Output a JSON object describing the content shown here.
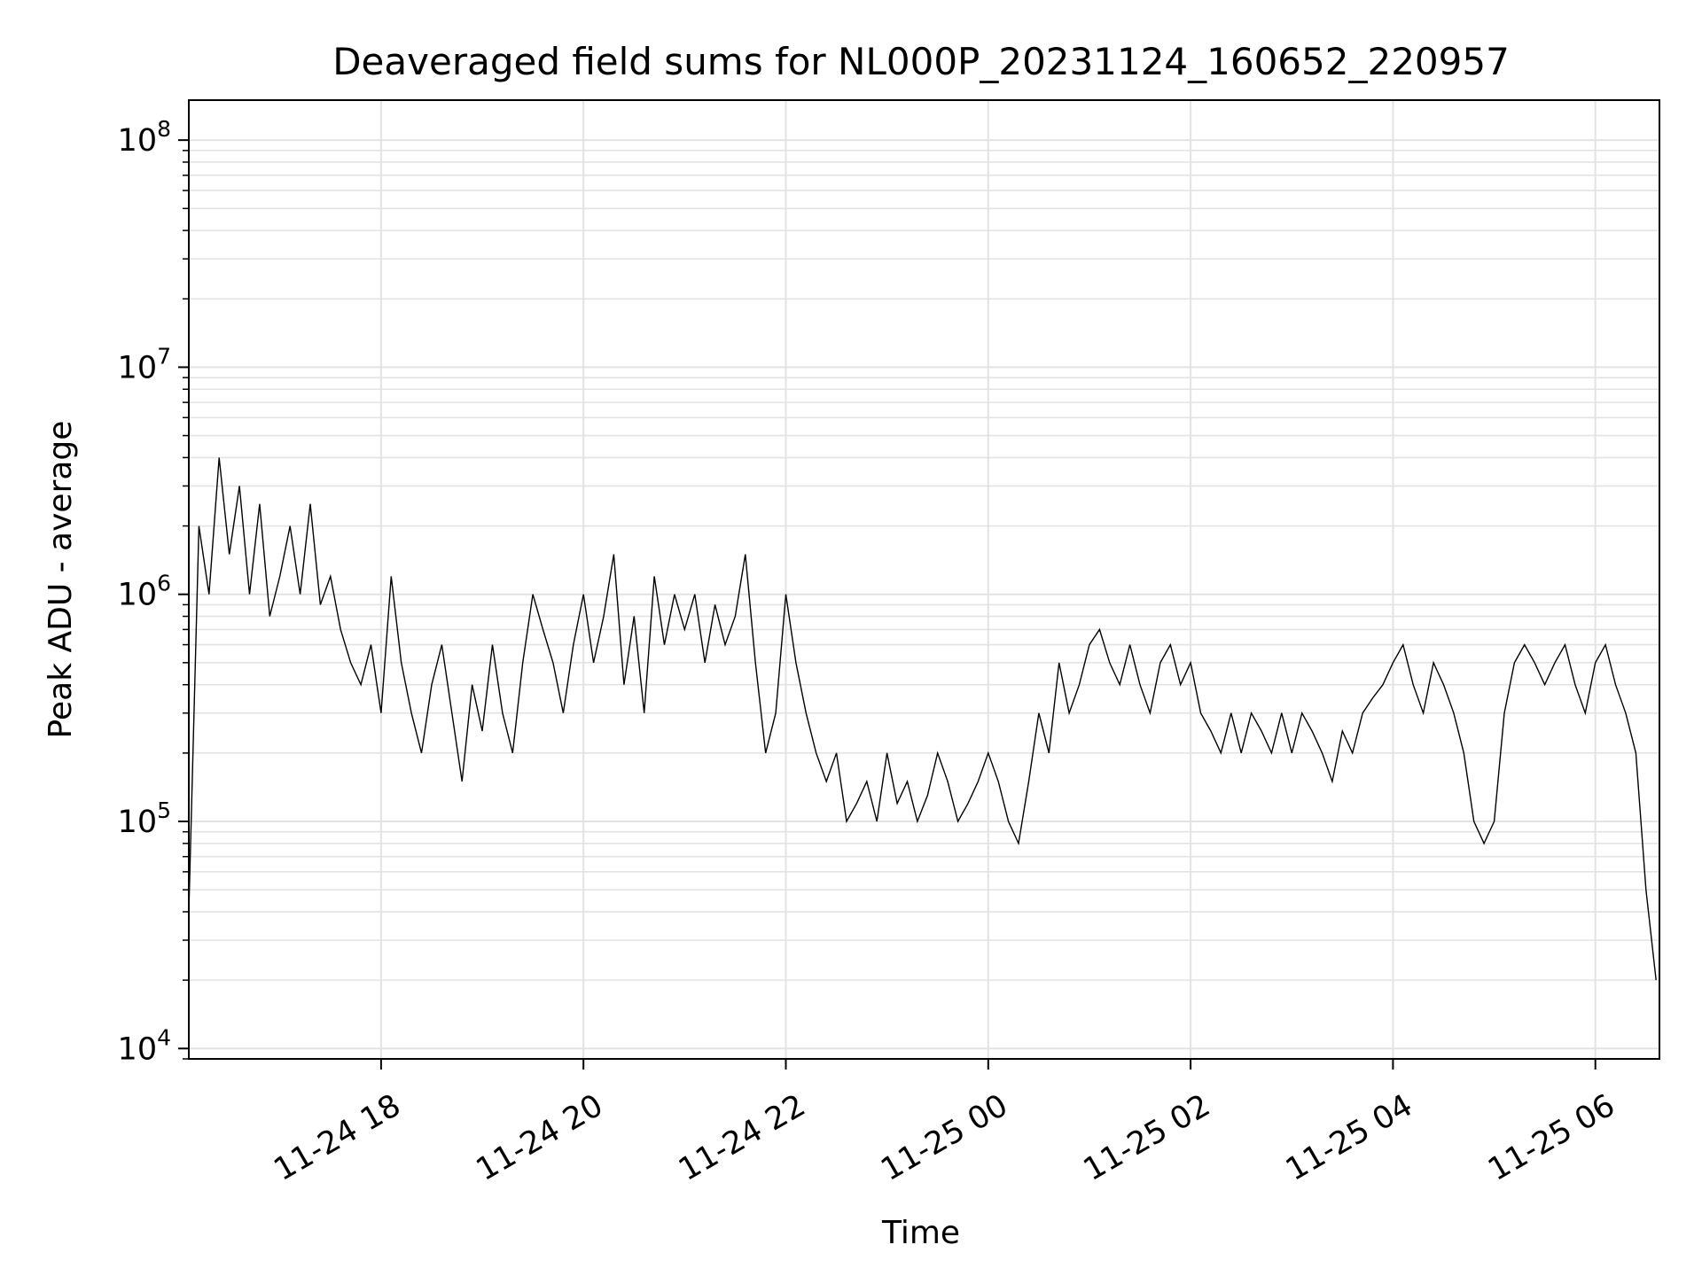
{
  "chart_data": {
    "type": "line",
    "title": "Deaveraged field sums for NL000P_20231124_160652_220957",
    "xlabel": "Time",
    "ylabel": "Peak ADU - average",
    "xlim": [
      "2023-11-24 16:06",
      "2023-11-25 06:38"
    ],
    "ylim": [
      9000,
      150000000
    ],
    "yscale": "log",
    "grid": true,
    "line_color": "#000000",
    "grid_color": "#e3e3e3",
    "x_ticks": [
      {
        "value": "2023-11-24 18:00",
        "label": "11-24 18"
      },
      {
        "value": "2023-11-24 20:00",
        "label": "11-24 20"
      },
      {
        "value": "2023-11-24 22:00",
        "label": "11-24 22"
      },
      {
        "value": "2023-11-25 00:00",
        "label": "11-25 00"
      },
      {
        "value": "2023-11-25 02:00",
        "label": "11-25 02"
      },
      {
        "value": "2023-11-25 04:00",
        "label": "11-25 04"
      },
      {
        "value": "2023-11-25 06:00",
        "label": "11-25 06"
      }
    ],
    "y_ticks": [
      {
        "value": 10000,
        "base": "10",
        "exp": "4"
      },
      {
        "value": 100000,
        "base": "10",
        "exp": "5"
      },
      {
        "value": 1000000,
        "base": "10",
        "exp": "6"
      },
      {
        "value": 10000000,
        "base": "10",
        "exp": "7"
      },
      {
        "value": 100000000,
        "base": "10",
        "exp": "8"
      }
    ],
    "series": [
      {
        "x": [
          "2023-11-24 16:06",
          "2023-11-24 16:12",
          "2023-11-24 16:18",
          "2023-11-24 16:24",
          "2023-11-24 16:30",
          "2023-11-24 16:36",
          "2023-11-24 16:42",
          "2023-11-24 16:48",
          "2023-11-24 16:54",
          "2023-11-24 17:00",
          "2023-11-24 17:06",
          "2023-11-24 17:12",
          "2023-11-24 17:18",
          "2023-11-24 17:24",
          "2023-11-24 17:30",
          "2023-11-24 17:36",
          "2023-11-24 17:42",
          "2023-11-24 17:48",
          "2023-11-24 17:54",
          "2023-11-24 18:00",
          "2023-11-24 18:06",
          "2023-11-24 18:12",
          "2023-11-24 18:18",
          "2023-11-24 18:24",
          "2023-11-24 18:30",
          "2023-11-24 18:36",
          "2023-11-24 18:42",
          "2023-11-24 18:48",
          "2023-11-24 18:54",
          "2023-11-24 19:00",
          "2023-11-24 19:06",
          "2023-11-24 19:12",
          "2023-11-24 19:18",
          "2023-11-24 19:24",
          "2023-11-24 19:30",
          "2023-11-24 19:36",
          "2023-11-24 19:42",
          "2023-11-24 19:48",
          "2023-11-24 19:54",
          "2023-11-24 20:00",
          "2023-11-24 20:06",
          "2023-11-24 20:12",
          "2023-11-24 20:18",
          "2023-11-24 20:24",
          "2023-11-24 20:30",
          "2023-11-24 20:36",
          "2023-11-24 20:42",
          "2023-11-24 20:48",
          "2023-11-24 20:54",
          "2023-11-24 21:00",
          "2023-11-24 21:06",
          "2023-11-24 21:12",
          "2023-11-24 21:18",
          "2023-11-24 21:24",
          "2023-11-24 21:30",
          "2023-11-24 21:36",
          "2023-11-24 21:42",
          "2023-11-24 21:48",
          "2023-11-24 21:54",
          "2023-11-24 22:00",
          "2023-11-24 22:06",
          "2023-11-24 22:12",
          "2023-11-24 22:18",
          "2023-11-24 22:24",
          "2023-11-24 22:30",
          "2023-11-24 22:36",
          "2023-11-24 22:42",
          "2023-11-24 22:48",
          "2023-11-24 22:54",
          "2023-11-24 23:00",
          "2023-11-24 23:06",
          "2023-11-24 23:12",
          "2023-11-24 23:18",
          "2023-11-24 23:24",
          "2023-11-24 23:30",
          "2023-11-24 23:36",
          "2023-11-24 23:42",
          "2023-11-24 23:48",
          "2023-11-24 23:54",
          "2023-11-25 00:00",
          "2023-11-25 00:06",
          "2023-11-25 00:12",
          "2023-11-25 00:18",
          "2023-11-25 00:24",
          "2023-11-25 00:30",
          "2023-11-25 00:36",
          "2023-11-25 00:42",
          "2023-11-25 00:48",
          "2023-11-25 00:54",
          "2023-11-25 01:00",
          "2023-11-25 01:06",
          "2023-11-25 01:12",
          "2023-11-25 01:18",
          "2023-11-25 01:24",
          "2023-11-25 01:30",
          "2023-11-25 01:36",
          "2023-11-25 01:42",
          "2023-11-25 01:48",
          "2023-11-25 01:54",
          "2023-11-25 02:00",
          "2023-11-25 02:06",
          "2023-11-25 02:12",
          "2023-11-25 02:18",
          "2023-11-25 02:24",
          "2023-11-25 02:30",
          "2023-11-25 02:36",
          "2023-11-25 02:42",
          "2023-11-25 02:48",
          "2023-11-25 02:54",
          "2023-11-25 03:00",
          "2023-11-25 03:06",
          "2023-11-25 03:12",
          "2023-11-25 03:18",
          "2023-11-25 03:24",
          "2023-11-25 03:30",
          "2023-11-25 03:36",
          "2023-11-25 03:42",
          "2023-11-25 03:48",
          "2023-11-25 03:54",
          "2023-11-25 04:00",
          "2023-11-25 04:06",
          "2023-11-25 04:12",
          "2023-11-25 04:18",
          "2023-11-25 04:24",
          "2023-11-25 04:30",
          "2023-11-25 04:36",
          "2023-11-25 04:42",
          "2023-11-25 04:48",
          "2023-11-25 04:54",
          "2023-11-25 05:00",
          "2023-11-25 05:06",
          "2023-11-25 05:12",
          "2023-11-25 05:18",
          "2023-11-25 05:24",
          "2023-11-25 05:30",
          "2023-11-25 05:36",
          "2023-11-25 05:42",
          "2023-11-25 05:48",
          "2023-11-25 05:54",
          "2023-11-25 06:00",
          "2023-11-25 06:06",
          "2023-11-25 06:12",
          "2023-11-25 06:18",
          "2023-11-25 06:24",
          "2023-11-25 06:30",
          "2023-11-25 06:36"
        ],
        "y": [
          40000,
          2000000,
          1000000,
          4000000,
          1500000,
          3000000,
          1000000,
          2500000,
          800000,
          1200000,
          2000000,
          1000000,
          2500000,
          900000,
          1200000,
          700000,
          500000,
          400000,
          600000,
          300000,
          1200000,
          500000,
          300000,
          200000,
          400000,
          600000,
          300000,
          150000,
          400000,
          250000,
          600000,
          300000,
          200000,
          500000,
          1000000,
          700000,
          500000,
          300000,
          600000,
          1000000,
          500000,
          800000,
          1500000,
          400000,
          800000,
          300000,
          1200000,
          600000,
          1000000,
          700000,
          1000000,
          500000,
          900000,
          600000,
          800000,
          1500000,
          500000,
          200000,
          300000,
          1000000,
          500000,
          300000,
          200000,
          150000,
          200000,
          100000,
          120000,
          150000,
          100000,
          200000,
          120000,
          150000,
          100000,
          130000,
          200000,
          150000,
          100000,
          120000,
          150000,
          200000,
          150000,
          100000,
          80000,
          150000,
          300000,
          200000,
          500000,
          300000,
          400000,
          600000,
          700000,
          500000,
          400000,
          600000,
          400000,
          300000,
          500000,
          600000,
          400000,
          500000,
          300000,
          250000,
          200000,
          300000,
          200000,
          300000,
          250000,
          200000,
          300000,
          200000,
          300000,
          250000,
          200000,
          150000,
          250000,
          200000,
          300000,
          350000,
          400000,
          500000,
          600000,
          400000,
          300000,
          500000,
          400000,
          300000,
          200000,
          100000,
          80000,
          100000,
          300000,
          500000,
          600000,
          500000,
          400000,
          500000,
          600000,
          400000,
          300000,
          500000,
          600000,
          400000,
          300000,
          200000,
          50000,
          20000
        ]
      }
    ]
  }
}
